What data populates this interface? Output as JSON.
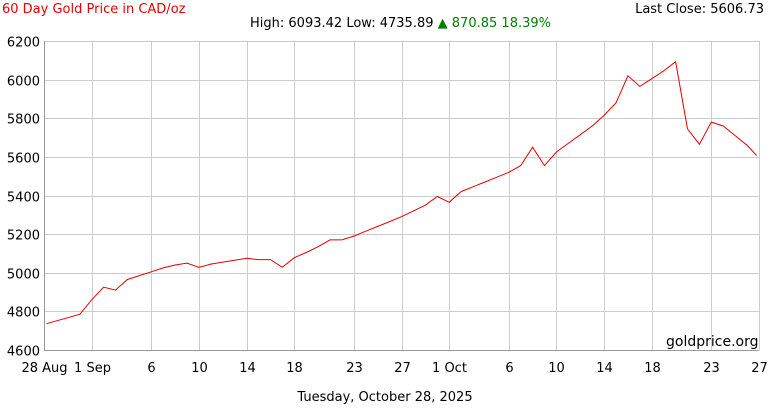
{
  "header": {
    "title": "60 Day Gold Price in CAD/oz",
    "last_close_label": "Last Close:",
    "last_close_value": "5606.73",
    "high_label": "High:",
    "high_value": "6093.42",
    "low_label": "Low:",
    "low_value": "4735.89",
    "change_arrow": "▲",
    "change_value": "870.85",
    "change_percent": "18.39%"
  },
  "watermark": "goldprice.org",
  "date_label": "Tuesday, October 28, 2025",
  "colors": {
    "line": "#e60000",
    "grid": "#cccccc",
    "axis": "#999999",
    "title": "#e60000",
    "change": "#008000"
  },
  "chart_data": {
    "type": "line",
    "title": "60 Day Gold Price in CAD/oz",
    "xlabel": "",
    "ylabel": "",
    "x_start": "2025-08-28",
    "xlim": [
      0,
      60
    ],
    "ylim": [
      4600,
      6200
    ],
    "y_ticks": [
      4600,
      4800,
      5000,
      5200,
      5400,
      5600,
      5800,
      6000,
      6200
    ],
    "x_ticks": [
      {
        "day": 0,
        "label": "28 Aug"
      },
      {
        "day": 4,
        "label": "1 Sep"
      },
      {
        "day": 9,
        "label": "6"
      },
      {
        "day": 13,
        "label": "10"
      },
      {
        "day": 17,
        "label": "14"
      },
      {
        "day": 21,
        "label": "18"
      },
      {
        "day": 26,
        "label": "23"
      },
      {
        "day": 30,
        "label": "27"
      },
      {
        "day": 34,
        "label": "1 Oct"
      },
      {
        "day": 39,
        "label": "6"
      },
      {
        "day": 43,
        "label": "10"
      },
      {
        "day": 47,
        "label": "14"
      },
      {
        "day": 51,
        "label": "18"
      },
      {
        "day": 56,
        "label": "23"
      },
      {
        "day": 60,
        "label": "27"
      }
    ],
    "grid": true,
    "series": [
      {
        "name": "",
        "x": [
          0.2,
          3,
          4,
          5,
          6,
          7,
          8,
          9,
          10,
          11,
          12,
          13,
          14,
          15,
          16,
          17,
          18,
          19,
          20,
          21,
          22,
          23,
          24,
          25,
          26,
          27,
          28,
          29,
          30,
          31,
          32,
          33,
          34,
          35,
          36,
          37,
          38,
          39,
          40,
          41,
          42,
          43,
          44,
          45,
          46,
          47,
          48,
          49,
          50,
          51,
          52,
          53,
          54,
          55,
          56,
          57,
          58,
          59,
          59.8
        ],
        "y": [
          4736,
          4785,
          4860,
          4925,
          4910,
          4965,
          4985,
          5005,
          5025,
          5040,
          5050,
          5028,
          5045,
          5055,
          5065,
          5075,
          5068,
          5068,
          5028,
          5078,
          5105,
          5135,
          5170,
          5170,
          5190,
          5215,
          5240,
          5265,
          5290,
          5320,
          5350,
          5395,
          5365,
          5420,
          5445,
          5470,
          5495,
          5520,
          5555,
          5650,
          5555,
          5625,
          5670,
          5715,
          5760,
          5815,
          5880,
          6020,
          5965,
          6005,
          6045,
          6093,
          5745,
          5665,
          5780,
          5760,
          5710,
          5660,
          5607
        ]
      }
    ]
  }
}
